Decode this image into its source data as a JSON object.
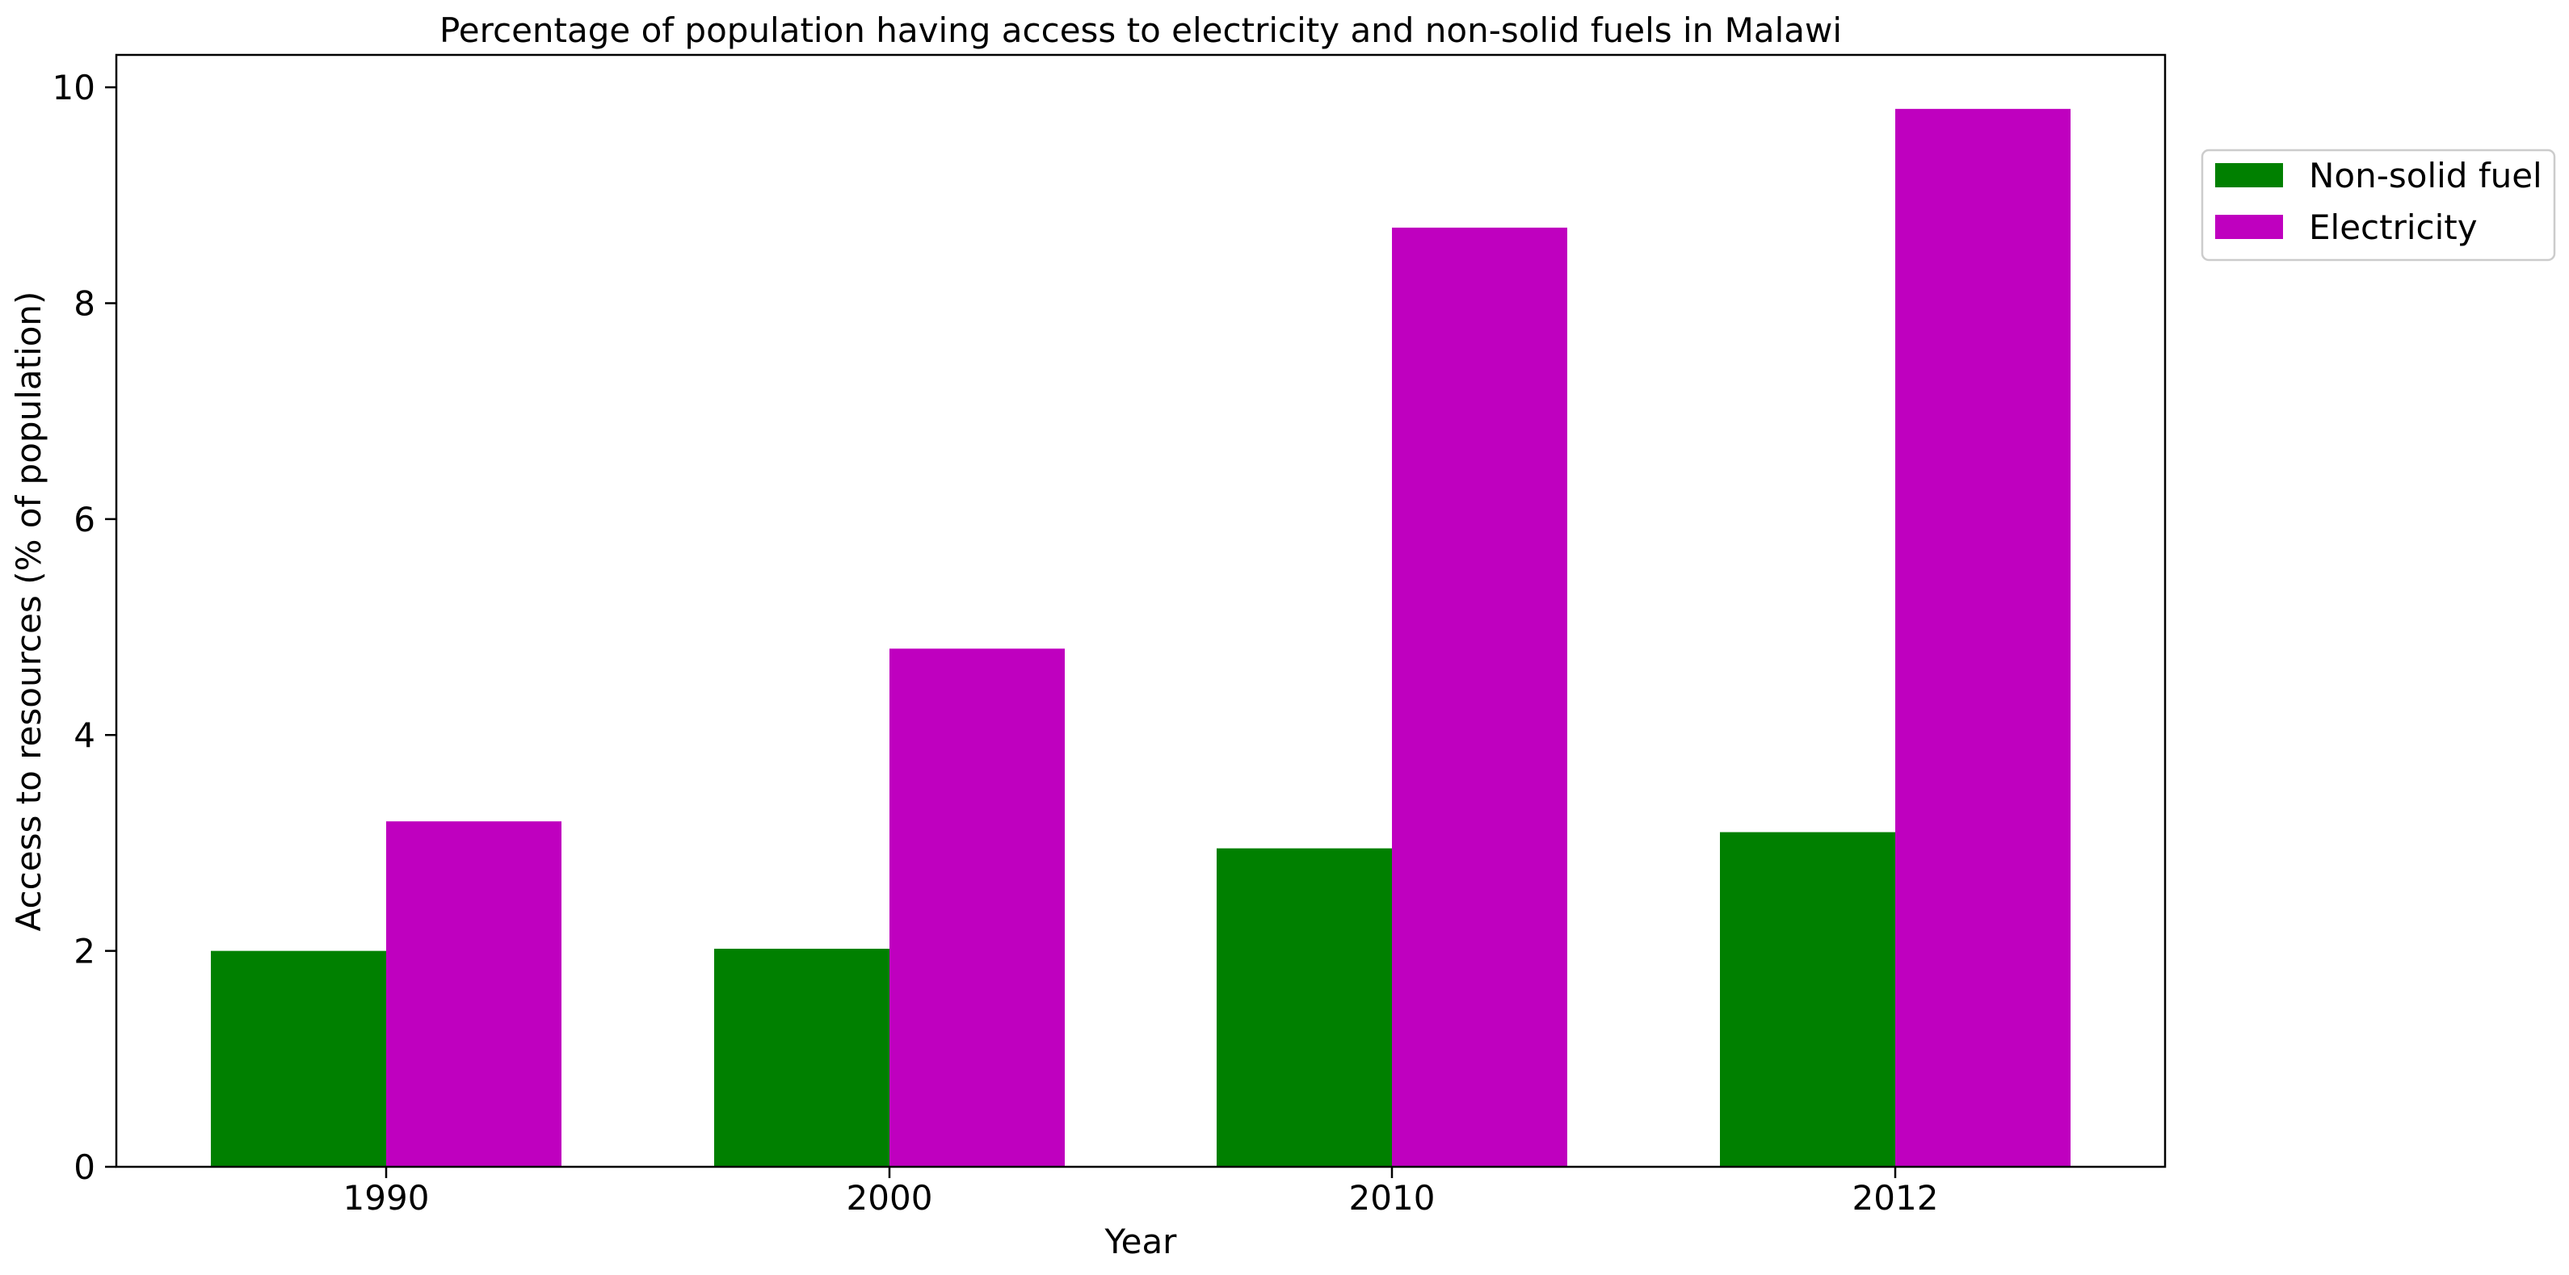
{
  "chart_data": {
    "type": "bar",
    "title": "Percentage of population having access to electricity and non-solid fuels in Malawi",
    "xlabel": "Year",
    "ylabel": "Access to resources (% of population)",
    "categories": [
      "1990",
      "2000",
      "2010",
      "2012"
    ],
    "series": [
      {
        "name": "Non-solid fuel",
        "color": "#008000",
        "values": [
          2.0,
          2.02,
          2.95,
          3.1
        ]
      },
      {
        "name": "Electricity",
        "color": "#bf00bf",
        "values": [
          3.2,
          4.8,
          8.7,
          9.8
        ]
      }
    ],
    "ylim": [
      0,
      10.3
    ],
    "yticks": [
      "0",
      "2",
      "4",
      "6",
      "8",
      "10"
    ],
    "grid": false,
    "legend_position": "outside-right-top"
  }
}
